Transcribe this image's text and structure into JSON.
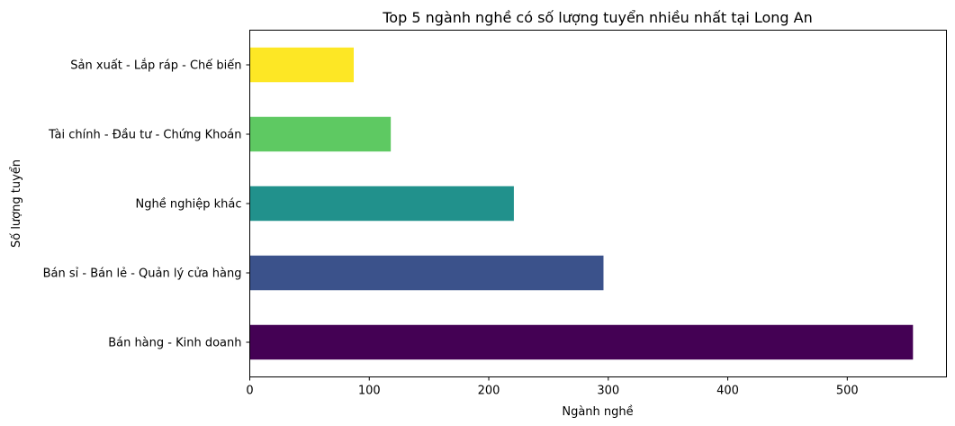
{
  "chart_data": {
    "type": "bar",
    "orientation": "horizontal",
    "title": "Top 5 ngành nghề có số lượng tuyển nhiều nhất tại Long An",
    "xlabel": "Ngành nghề",
    "ylabel": "Số lượng tuyển",
    "categories": [
      "Bán hàng - Kinh doanh",
      "Bán sỉ - Bán lẻ - Quản lý cửa hàng",
      "Nghề nghiệp khác",
      "Tài chính - Đầu tư - Chứng Khoán",
      "Sản xuất - Lắp ráp - Chế biến"
    ],
    "values": [
      555,
      296,
      221,
      118,
      87
    ],
    "colors": [
      "#440154",
      "#3b528b",
      "#21918c",
      "#5ec962",
      "#fde725"
    ],
    "xlim": [
      0,
      583
    ],
    "xticks": [
      0,
      100,
      200,
      300,
      400,
      500
    ],
    "grid": false,
    "legend": "none"
  }
}
